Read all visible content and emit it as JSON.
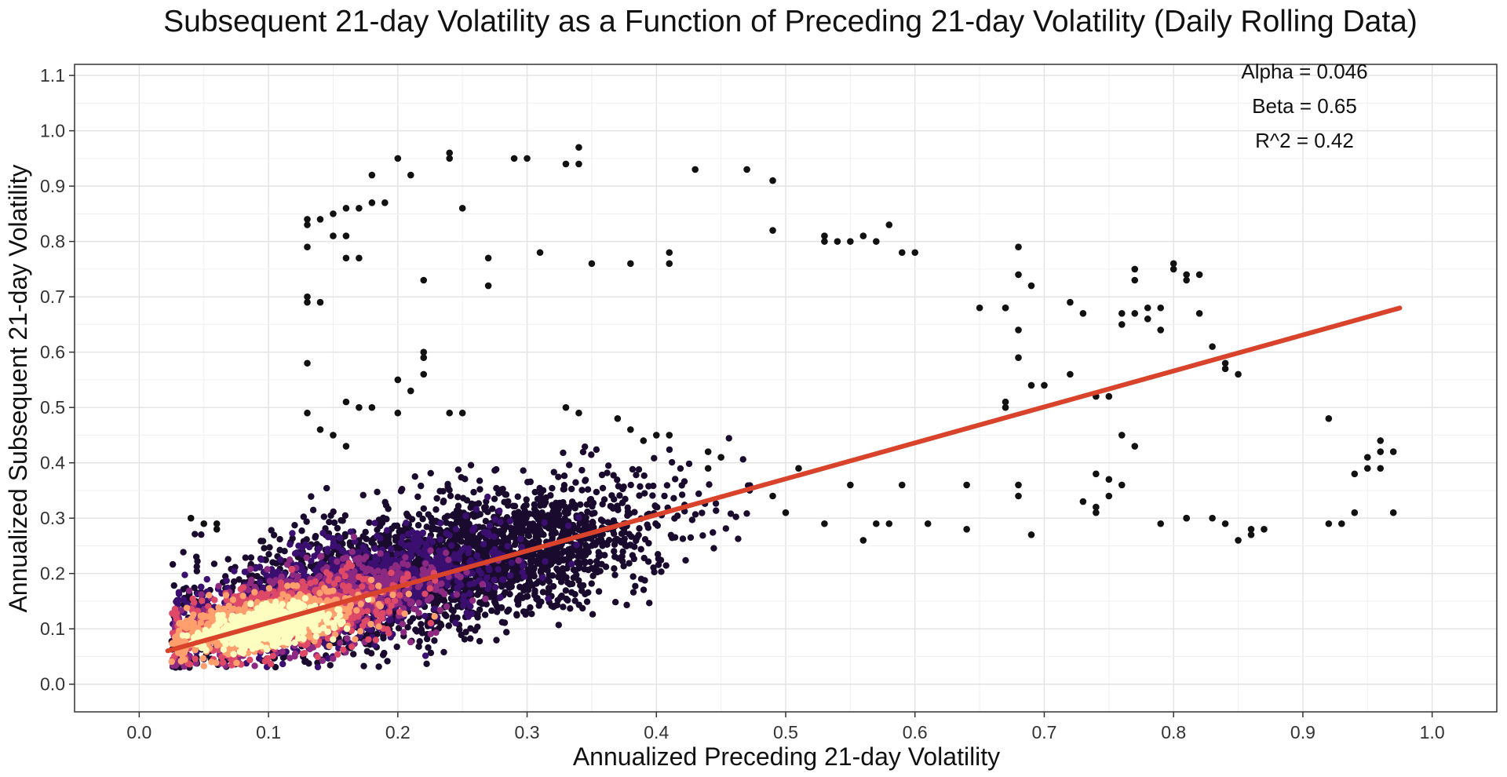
{
  "chart_data": {
    "type": "scatter",
    "title": "Subsequent 21-day Volatility as a Function of Preceding 21-day Volatility (Daily Rolling Data)",
    "xlabel": "Annualized Preceding 21-day Volatility",
    "ylabel": "Annualized Subsequent 21-day Volatility",
    "xlim": [
      -0.05,
      1.05
    ],
    "ylim": [
      -0.05,
      1.12
    ],
    "x_ticks": [
      "0.0",
      "0.1",
      "0.2",
      "0.3",
      "0.4",
      "0.5",
      "0.6",
      "0.7",
      "0.8",
      "0.9",
      "1.0"
    ],
    "y_ticks": [
      "0.0",
      "0.1",
      "0.2",
      "0.3",
      "0.4",
      "0.5",
      "0.6",
      "0.7",
      "0.8",
      "0.9",
      "1.0",
      "1.1"
    ],
    "grid": true,
    "annotations": {
      "alpha": "Alpha = 0.046",
      "beta": "Beta = 0.65",
      "r2": "R^2 = 0.42"
    },
    "regression": {
      "intercept": 0.046,
      "slope": 0.65,
      "x_range": [
        0.022,
        0.975
      ],
      "color": "#d9432b"
    },
    "density_colors": [
      "#1a0b2e",
      "#3b0f70",
      "#8c2981",
      "#de4968",
      "#fe9f6d",
      "#fcfdbf"
    ],
    "points": [
      [
        0.13,
        0.83
      ],
      [
        0.13,
        0.84
      ],
      [
        0.14,
        0.84
      ],
      [
        0.15,
        0.85
      ],
      [
        0.16,
        0.86
      ],
      [
        0.17,
        0.86
      ],
      [
        0.15,
        0.81
      ],
      [
        0.16,
        0.81
      ],
      [
        0.16,
        0.77
      ],
      [
        0.17,
        0.77
      ],
      [
        0.13,
        0.79
      ],
      [
        0.18,
        0.87
      ],
      [
        0.19,
        0.87
      ],
      [
        0.18,
        0.92
      ],
      [
        0.2,
        0.95
      ],
      [
        0.21,
        0.92
      ],
      [
        0.24,
        0.96
      ],
      [
        0.24,
        0.95
      ],
      [
        0.25,
        0.86
      ],
      [
        0.29,
        0.95
      ],
      [
        0.3,
        0.95
      ],
      [
        0.33,
        0.94
      ],
      [
        0.34,
        0.97
      ],
      [
        0.34,
        0.94
      ],
      [
        0.43,
        0.93
      ],
      [
        0.47,
        0.93
      ],
      [
        0.49,
        0.91
      ],
      [
        0.49,
        0.82
      ],
      [
        0.53,
        0.8
      ],
      [
        0.53,
        0.81
      ],
      [
        0.54,
        0.8
      ],
      [
        0.55,
        0.8
      ],
      [
        0.56,
        0.81
      ],
      [
        0.57,
        0.8
      ],
      [
        0.58,
        0.83
      ],
      [
        0.59,
        0.78
      ],
      [
        0.6,
        0.78
      ],
      [
        0.31,
        0.78
      ],
      [
        0.35,
        0.76
      ],
      [
        0.38,
        0.76
      ],
      [
        0.41,
        0.78
      ],
      [
        0.41,
        0.76
      ],
      [
        0.27,
        0.77
      ],
      [
        0.27,
        0.72
      ],
      [
        0.22,
        0.73
      ],
      [
        0.13,
        0.69
      ],
      [
        0.13,
        0.7
      ],
      [
        0.14,
        0.69
      ],
      [
        0.13,
        0.58
      ],
      [
        0.22,
        0.6
      ],
      [
        0.22,
        0.59
      ],
      [
        0.22,
        0.56
      ],
      [
        0.2,
        0.55
      ],
      [
        0.21,
        0.53
      ],
      [
        0.2,
        0.49
      ],
      [
        0.24,
        0.49
      ],
      [
        0.25,
        0.49
      ],
      [
        0.13,
        0.49
      ],
      [
        0.14,
        0.46
      ],
      [
        0.16,
        0.51
      ],
      [
        0.17,
        0.5
      ],
      [
        0.18,
        0.5
      ],
      [
        0.15,
        0.45
      ],
      [
        0.16,
        0.43
      ],
      [
        0.33,
        0.5
      ],
      [
        0.34,
        0.49
      ],
      [
        0.37,
        0.48
      ],
      [
        0.38,
        0.46
      ],
      [
        0.39,
        0.44
      ],
      [
        0.4,
        0.45
      ],
      [
        0.41,
        0.45
      ],
      [
        0.44,
        0.42
      ],
      [
        0.45,
        0.41
      ],
      [
        0.44,
        0.39
      ],
      [
        0.49,
        0.34
      ],
      [
        0.5,
        0.31
      ],
      [
        0.51,
        0.39
      ],
      [
        0.53,
        0.29
      ],
      [
        0.55,
        0.36
      ],
      [
        0.56,
        0.26
      ],
      [
        0.57,
        0.29
      ],
      [
        0.58,
        0.29
      ],
      [
        0.59,
        0.36
      ],
      [
        0.61,
        0.29
      ],
      [
        0.64,
        0.28
      ],
      [
        0.64,
        0.36
      ],
      [
        0.65,
        0.68
      ],
      [
        0.67,
        0.68
      ],
      [
        0.67,
        0.68
      ],
      [
        0.68,
        0.74
      ],
      [
        0.68,
        0.79
      ],
      [
        0.68,
        0.64
      ],
      [
        0.68,
        0.59
      ],
      [
        0.67,
        0.51
      ],
      [
        0.67,
        0.5
      ],
      [
        0.69,
        0.54
      ],
      [
        0.7,
        0.54
      ],
      [
        0.69,
        0.72
      ],
      [
        0.68,
        0.34
      ],
      [
        0.68,
        0.36
      ],
      [
        0.69,
        0.27
      ],
      [
        0.72,
        0.69
      ],
      [
        0.73,
        0.67
      ],
      [
        0.72,
        0.56
      ],
      [
        0.74,
        0.52
      ],
      [
        0.75,
        0.52
      ],
      [
        0.73,
        0.33
      ],
      [
        0.74,
        0.38
      ],
      [
        0.74,
        0.32
      ],
      [
        0.74,
        0.31
      ],
      [
        0.75,
        0.34
      ],
      [
        0.75,
        0.37
      ],
      [
        0.76,
        0.36
      ],
      [
        0.76,
        0.67
      ],
      [
        0.76,
        0.65
      ],
      [
        0.77,
        0.67
      ],
      [
        0.77,
        0.75
      ],
      [
        0.77,
        0.73
      ],
      [
        0.78,
        0.68
      ],
      [
        0.78,
        0.66
      ],
      [
        0.79,
        0.64
      ],
      [
        0.79,
        0.68
      ],
      [
        0.8,
        0.75
      ],
      [
        0.8,
        0.76
      ],
      [
        0.81,
        0.74
      ],
      [
        0.81,
        0.73
      ],
      [
        0.82,
        0.74
      ],
      [
        0.82,
        0.67
      ],
      [
        0.83,
        0.61
      ],
      [
        0.84,
        0.58
      ],
      [
        0.84,
        0.57
      ],
      [
        0.85,
        0.56
      ],
      [
        0.76,
        0.45
      ],
      [
        0.77,
        0.43
      ],
      [
        0.79,
        0.29
      ],
      [
        0.81,
        0.3
      ],
      [
        0.81,
        0.3
      ],
      [
        0.83,
        0.3
      ],
      [
        0.84,
        0.29
      ],
      [
        0.85,
        0.26
      ],
      [
        0.86,
        0.27
      ],
      [
        0.86,
        0.28
      ],
      [
        0.87,
        0.28
      ],
      [
        0.92,
        0.48
      ],
      [
        0.93,
        0.29
      ],
      [
        0.92,
        0.29
      ],
      [
        0.94,
        0.31
      ],
      [
        0.94,
        0.38
      ],
      [
        0.95,
        0.39
      ],
      [
        0.95,
        0.41
      ],
      [
        0.96,
        0.42
      ],
      [
        0.96,
        0.44
      ],
      [
        0.97,
        0.42
      ],
      [
        0.96,
        0.39
      ],
      [
        0.97,
        0.31
      ],
      [
        0.04,
        0.3
      ],
      [
        0.05,
        0.29
      ],
      [
        0.06,
        0.29
      ],
      [
        0.06,
        0.28
      ]
    ]
  }
}
